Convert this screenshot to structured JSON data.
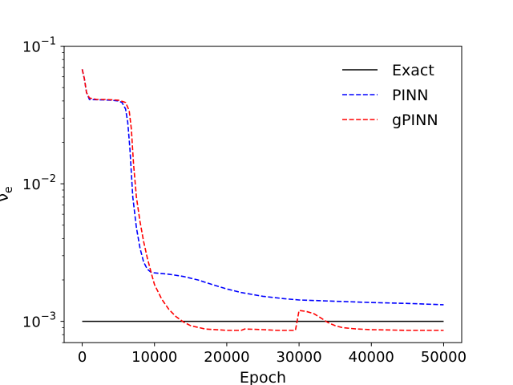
{
  "chart_data": {
    "type": "line",
    "title": "",
    "xlabel": "Epoch",
    "ylabel_base": "ν",
    "ylabel_sub": "e",
    "xlim": [
      -2500,
      52500
    ],
    "ylim": [
      0.0007,
      0.1
    ],
    "yscale": "log",
    "grid": false,
    "legend_position": "top-right",
    "x_ticks": [
      {
        "value": 0,
        "label": "0"
      },
      {
        "value": 10000,
        "label": "10000"
      },
      {
        "value": 20000,
        "label": "20000"
      },
      {
        "value": 30000,
        "label": "30000"
      },
      {
        "value": 40000,
        "label": "40000"
      },
      {
        "value": 50000,
        "label": "50000"
      }
    ],
    "y_ticks": [
      {
        "value": 0.001,
        "base": "10",
        "exp": "−3"
      },
      {
        "value": 0.01,
        "base": "10",
        "exp": "−2"
      },
      {
        "value": 0.1,
        "base": "10",
        "exp": "−1"
      }
    ],
    "series": [
      {
        "name": "Exact",
        "color": "#000000",
        "dash": "solid",
        "x": [
          0,
          50000
        ],
        "y": [
          0.001,
          0.001
        ]
      },
      {
        "name": "PINN",
        "color": "#0000ff",
        "dash": "dashed",
        "x": [
          0,
          300,
          600,
          1000,
          2000,
          3000,
          4000,
          5000,
          5500,
          6000,
          6300,
          6600,
          7000,
          7500,
          8000,
          8500,
          9000,
          9500,
          10000,
          12000,
          14000,
          16000,
          18000,
          20000,
          22000,
          25000,
          28000,
          30000,
          35000,
          40000,
          45000,
          50000
        ],
        "y": [
          0.068,
          0.058,
          0.046,
          0.041,
          0.0408,
          0.0407,
          0.0405,
          0.04,
          0.039,
          0.035,
          0.028,
          0.018,
          0.008,
          0.0048,
          0.0034,
          0.0027,
          0.0024,
          0.00228,
          0.00225,
          0.0022,
          0.00212,
          0.002,
          0.00185,
          0.00172,
          0.00162,
          0.00152,
          0.00146,
          0.00143,
          0.0014,
          0.00137,
          0.00135,
          0.00132
        ]
      },
      {
        "name": "gPINN",
        "color": "#ff0000",
        "dash": "dashed",
        "x": [
          0,
          300,
          600,
          1000,
          2000,
          3000,
          4000,
          5000,
          6000,
          6500,
          6800,
          7100,
          7500,
          8000,
          8500,
          9000,
          9500,
          10000,
          11000,
          12000,
          13000,
          14000,
          15000,
          17000,
          20000,
          22000,
          22500,
          25000,
          27000,
          29500,
          29800,
          30000,
          31000,
          32000,
          33000,
          34000,
          35000,
          36000,
          38000,
          40000,
          45000,
          50000
        ],
        "y": [
          0.068,
          0.058,
          0.046,
          0.042,
          0.041,
          0.041,
          0.0408,
          0.0405,
          0.039,
          0.034,
          0.025,
          0.014,
          0.008,
          0.0053,
          0.0038,
          0.0029,
          0.0023,
          0.00185,
          0.00145,
          0.00122,
          0.00108,
          0.00099,
          0.00093,
          0.00088,
          0.00086,
          0.00086,
          0.00088,
          0.00087,
          0.00086,
          0.00086,
          0.00105,
          0.0012,
          0.00118,
          0.00114,
          0.00106,
          0.00098,
          0.00093,
          0.0009,
          0.00088,
          0.00087,
          0.00086,
          0.00086
        ]
      }
    ]
  }
}
